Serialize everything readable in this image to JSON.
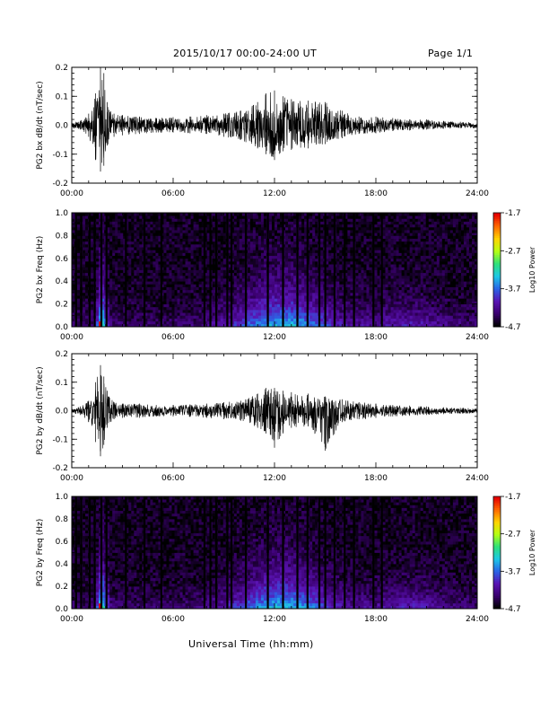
{
  "header": {
    "title": "2015/10/17  00:00-24:00 UT",
    "page": "Page 1/1"
  },
  "x_axis_title": "Universal Time (hh:mm)",
  "colors": {
    "trace": "#000000",
    "colormap": [
      "#000000",
      "#3a006e",
      "#5a14b4",
      "#2a64e6",
      "#1ec8e6",
      "#2ee07a",
      "#b4ff14",
      "#ffd400",
      "#ff6a00",
      "#e60000"
    ]
  },
  "chart_data": [
    {
      "type": "line",
      "ylabel": "PG2 bx dB/dt (nT/sec)",
      "x_unit": "hours UT",
      "xlim": [
        0,
        24
      ],
      "ylim": [
        -0.2,
        0.2
      ],
      "xticks": [
        "00:00",
        "06:00",
        "12:00",
        "18:00",
        "24:00"
      ],
      "yticks": [
        "-0.2",
        "-0.1",
        "0.0",
        "0.1",
        "0.2"
      ],
      "envelope": {
        "x": [
          0,
          0.5,
          1.0,
          1.4,
          1.7,
          1.9,
          2.1,
          2.5,
          3.0,
          4.0,
          5.0,
          6.0,
          7.0,
          8.0,
          9.0,
          10.0,
          11.0,
          11.5,
          12.0,
          12.5,
          13.0,
          14.0,
          15.0,
          16.0,
          17.0,
          18.0,
          19.0,
          20.0,
          21.0,
          22.0,
          23.0,
          24.0
        ],
        "upper": [
          0.01,
          0.015,
          0.04,
          0.11,
          0.2,
          0.18,
          0.08,
          0.04,
          0.035,
          0.03,
          0.025,
          0.028,
          0.03,
          0.035,
          0.04,
          0.05,
          0.08,
          0.11,
          0.12,
          0.1,
          0.09,
          0.085,
          0.08,
          0.05,
          0.03,
          0.03,
          0.025,
          0.02,
          0.02,
          0.015,
          0.012,
          0.01
        ],
        "lower": [
          -0.01,
          -0.015,
          -0.04,
          -0.12,
          -0.16,
          -0.14,
          -0.07,
          -0.04,
          -0.035,
          -0.03,
          -0.025,
          -0.025,
          -0.028,
          -0.03,
          -0.04,
          -0.05,
          -0.08,
          -0.1,
          -0.12,
          -0.09,
          -0.085,
          -0.08,
          -0.065,
          -0.045,
          -0.03,
          -0.028,
          -0.02,
          -0.018,
          -0.015,
          -0.012,
          -0.01,
          -0.01
        ]
      }
    },
    {
      "type": "heatmap",
      "ylabel": "PG2 bx Freq (Hz)",
      "x_unit": "hours UT",
      "xlim": [
        0,
        24
      ],
      "ylim": [
        0,
        1.0
      ],
      "xticks": [
        "00:00",
        "06:00",
        "12:00",
        "18:00",
        "24:00"
      ],
      "yticks": [
        "0.0",
        "0.2",
        "0.4",
        "0.6",
        "0.8",
        "1.0"
      ],
      "colorbar": {
        "label": "Log10 Power",
        "range": [
          -4.7,
          -1.7
        ],
        "ticks": [
          "-1.7",
          "-2.7",
          "-3.7",
          "-4.7"
        ]
      },
      "data_gaps_hours": [
        0.25,
        0.55,
        1.05,
        1.35,
        1.75,
        2.05,
        3.2,
        4.3,
        5.3,
        7.85,
        8.2,
        8.55,
        9.2,
        9.45,
        10.3,
        11.6,
        12.5,
        13.35,
        13.95,
        14.65,
        15.0,
        15.55,
        16.15,
        16.7,
        17.85,
        18.35
      ],
      "hot_spot": {
        "hour": 1.7,
        "freq_max": 0.05,
        "log10_power": -1.7
      }
    },
    {
      "type": "line",
      "ylabel": "PG2 by dB/dt (nT/sec)",
      "x_unit": "hours UT",
      "xlim": [
        0,
        24
      ],
      "ylim": [
        -0.2,
        0.2
      ],
      "xticks": [
        "00:00",
        "06:00",
        "12:00",
        "18:00",
        "24:00"
      ],
      "yticks": [
        "-0.2",
        "-0.1",
        "0.0",
        "0.1",
        "0.2"
      ],
      "envelope": {
        "x": [
          0,
          0.5,
          1.0,
          1.4,
          1.7,
          1.9,
          2.1,
          2.5,
          3.0,
          4.0,
          5.0,
          6.0,
          7.0,
          8.0,
          9.0,
          10.0,
          11.0,
          11.5,
          12.0,
          12.5,
          13.0,
          14.0,
          15.0,
          16.0,
          17.0,
          18.0,
          19.0,
          20.0,
          21.0,
          22.0,
          23.0,
          24.0
        ],
        "upper": [
          0.01,
          0.015,
          0.035,
          0.1,
          0.16,
          0.12,
          0.07,
          0.03,
          0.025,
          0.025,
          0.02,
          0.02,
          0.022,
          0.025,
          0.03,
          0.035,
          0.06,
          0.08,
          0.08,
          0.07,
          0.065,
          0.06,
          0.05,
          0.04,
          0.03,
          0.025,
          0.02,
          0.018,
          0.015,
          0.012,
          0.01,
          0.01
        ],
        "lower": [
          -0.01,
          -0.015,
          -0.04,
          -0.11,
          -0.16,
          -0.12,
          -0.06,
          -0.03,
          -0.025,
          -0.025,
          -0.02,
          -0.02,
          -0.022,
          -0.025,
          -0.03,
          -0.035,
          -0.06,
          -0.08,
          -0.13,
          -0.08,
          -0.06,
          -0.055,
          -0.14,
          -0.04,
          -0.03,
          -0.025,
          -0.02,
          -0.018,
          -0.015,
          -0.012,
          -0.01,
          -0.01
        ]
      }
    },
    {
      "type": "heatmap",
      "ylabel": "PG2 by Freq (Hz)",
      "x_unit": "hours UT",
      "xlim": [
        0,
        24
      ],
      "ylim": [
        0,
        1.0
      ],
      "xticks": [
        "00:00",
        "06:00",
        "12:00",
        "18:00",
        "24:00"
      ],
      "yticks": [
        "0.0",
        "0.2",
        "0.4",
        "0.6",
        "0.8",
        "1.0"
      ],
      "colorbar": {
        "label": "Log10 Power",
        "range": [
          -4.7,
          -1.7
        ],
        "ticks": [
          "-1.7",
          "-2.7",
          "-3.7",
          "-4.7"
        ]
      },
      "data_gaps_hours": [
        0.25,
        0.55,
        1.05,
        1.35,
        1.75,
        2.05,
        3.2,
        4.3,
        5.3,
        7.85,
        8.2,
        8.55,
        9.2,
        9.45,
        10.3,
        11.6,
        12.5,
        13.35,
        13.95,
        14.65,
        15.0,
        15.55,
        16.15,
        16.7,
        17.85,
        18.35
      ],
      "hot_spot": {
        "hour": 1.7,
        "freq_max": 0.05,
        "log10_power": -1.7
      }
    }
  ]
}
